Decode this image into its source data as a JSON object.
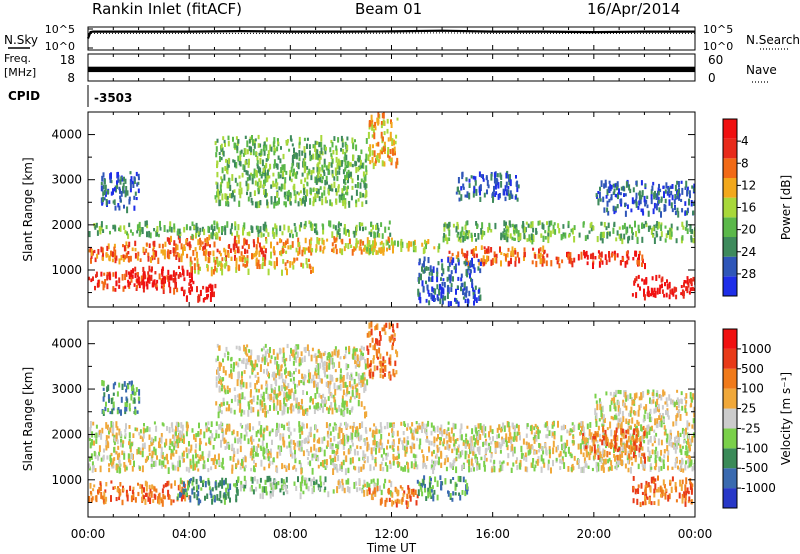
{
  "header": {
    "station": "Rankin Inlet (fitACF)",
    "beam": "Beam 01",
    "date": "16/Apr/2014"
  },
  "colors": {
    "power_scale": [
      "#1e2ee8",
      "#2f56b8",
      "#3e8a5c",
      "#5bb84a",
      "#a8d83a",
      "#f2a81c",
      "#f26a16",
      "#e82a1a",
      "#f01010"
    ],
    "velocity_scale": [
      "#2838c8",
      "#3a6ab0",
      "#3a8a58",
      "#7ad04a",
      "#cccccc",
      "#f0a83a",
      "#f07a1a",
      "#e83a18",
      "#f01010"
    ],
    "velocity_ground": "#c8c8c8",
    "trace": "#000000"
  },
  "chart_data": [
    {
      "type": "line",
      "panel": "noise",
      "left_label": "N.Sky",
      "left_ticks": [
        "10^5",
        "10^0"
      ],
      "right_ticks": [
        "10^5",
        "10^0"
      ],
      "right_label": "N.Search",
      "right_legend_line": "dotted",
      "series": [
        {
          "style": "solid",
          "x": [
            0,
            0.1,
            0.2,
            2,
            4,
            6,
            8,
            10,
            12,
            14,
            16,
            18,
            20,
            22,
            24
          ],
          "y": [
            0.5,
            0.78,
            0.8,
            0.8,
            0.8,
            0.82,
            0.8,
            0.8,
            0.81,
            0.84,
            0.8,
            0.8,
            0.78,
            0.8,
            0.8
          ]
        },
        {
          "style": "dotted",
          "x": [
            0,
            4,
            8,
            12,
            14,
            16,
            20,
            24
          ],
          "y": [
            0.72,
            0.72,
            0.72,
            0.73,
            0.75,
            0.72,
            0.72,
            0.72
          ]
        }
      ]
    },
    {
      "type": "line",
      "panel": "frequency",
      "left_label": "Freq.",
      "left_unit": "[MHz]",
      "left_ticks": [
        "18",
        "8"
      ],
      "right_ticks": [
        "60",
        "0"
      ],
      "right_label": "Nave",
      "right_legend_line": "dotted",
      "band": {
        "x": [
          0,
          24
        ],
        "y_low": 0.33,
        "y_high": 0.53
      }
    },
    {
      "type": "table",
      "panel": "cpid",
      "label": "CPID",
      "value": "-3503"
    },
    {
      "type": "heatmap",
      "panel": "power",
      "ylabel": "Slant Range [km]",
      "xlim": [
        0,
        24
      ],
      "ylim": [
        180,
        4500
      ],
      "yticks": [
        1000,
        2000,
        3000,
        4000
      ],
      "colorbar": {
        "label": "Power [dB]",
        "ticks": [
          "4",
          "8",
          "12",
          "16",
          "20",
          "24",
          "28"
        ]
      },
      "regions": [
        {
          "x": [
            0,
            3.5
          ],
          "y": [
            600,
            1000
          ],
          "level": 7
        },
        {
          "x": [
            1.5,
            4.2
          ],
          "y": [
            700,
            1100
          ],
          "level": 8
        },
        {
          "x": [
            3.5,
            5
          ],
          "y": [
            380,
            700
          ],
          "level": 8
        },
        {
          "x": [
            0,
            3
          ],
          "y": [
            1250,
            1650
          ],
          "level": 6
        },
        {
          "x": [
            3,
            7
          ],
          "y": [
            1300,
            1800
          ],
          "level": 6
        },
        {
          "x": [
            4,
            9
          ],
          "y": [
            1000,
            1300
          ],
          "level": 5
        },
        {
          "x": [
            7,
            12
          ],
          "y": [
            1400,
            1750
          ],
          "level": 5
        },
        {
          "x": [
            0,
            12
          ],
          "y": [
            1800,
            2100
          ],
          "level": 3
        },
        {
          "x": [
            11,
            14
          ],
          "y": [
            1450,
            1700
          ],
          "level": 4
        },
        {
          "x": [
            14,
            18
          ],
          "y": [
            1200,
            1550
          ],
          "level": 6
        },
        {
          "x": [
            18,
            22
          ],
          "y": [
            1150,
            1450
          ],
          "level": 7
        },
        {
          "x": [
            21.5,
            24
          ],
          "y": [
            450,
            900
          ],
          "level": 8
        },
        {
          "x": [
            14,
            24
          ],
          "y": [
            1700,
            2100
          ],
          "level": 3
        },
        {
          "x": [
            13,
            15.5
          ],
          "y": [
            300,
            1300
          ],
          "level": 1
        },
        {
          "x": [
            20,
            24
          ],
          "y": [
            2300,
            3000
          ],
          "level": 1
        },
        {
          "x": [
            0.5,
            2
          ],
          "y": [
            2400,
            3200
          ],
          "level": 1
        },
        {
          "x": [
            5,
            11
          ],
          "y": [
            2500,
            4000
          ],
          "level": 3
        },
        {
          "x": [
            11,
            12.2
          ],
          "y": [
            3300,
            4500
          ],
          "level": 5
        },
        {
          "x": [
            14.5,
            17
          ],
          "y": [
            2600,
            3200
          ],
          "level": 1
        }
      ]
    },
    {
      "type": "heatmap",
      "panel": "velocity",
      "ylabel": "Slant Range [km]",
      "xlabel": "Time UT",
      "xlim": [
        0,
        24
      ],
      "ylim": [
        180,
        4500
      ],
      "yticks": [
        1000,
        2000,
        3000,
        4000
      ],
      "xticks": [
        "00:00",
        "04:00",
        "08:00",
        "12:00",
        "16:00",
        "20:00",
        "00:00"
      ],
      "xtick_values": [
        0,
        4,
        8,
        12,
        16,
        20,
        24
      ],
      "colorbar": {
        "label": "Velocity [m s⁻¹]",
        "ticks": [
          "1000",
          "500",
          "100",
          "25",
          "-25",
          "-100",
          "-500",
          "-1000"
        ]
      },
      "regions": [
        {
          "x": [
            0,
            24
          ],
          "y": [
            1250,
            2300
          ],
          "level": 4
        },
        {
          "x": [
            0,
            4
          ],
          "y": [
            550,
            1000
          ],
          "level": 6
        },
        {
          "x": [
            3.5,
            6
          ],
          "y": [
            550,
            1100
          ],
          "level": 2
        },
        {
          "x": [
            6,
            9.5
          ],
          "y": [
            700,
            1100
          ],
          "level": 3
        },
        {
          "x": [
            9.5,
            12
          ],
          "y": [
            750,
            1050
          ],
          "level": 4
        },
        {
          "x": [
            11,
            13
          ],
          "y": [
            500,
            900
          ],
          "level": 6
        },
        {
          "x": [
            13,
            15
          ],
          "y": [
            600,
            1100
          ],
          "level": 2
        },
        {
          "x": [
            19.5,
            22
          ],
          "y": [
            1500,
            2200
          ],
          "level": 6
        },
        {
          "x": [
            21.5,
            24
          ],
          "y": [
            500,
            1100
          ],
          "level": 6
        },
        {
          "x": [
            5,
            11
          ],
          "y": [
            2500,
            4000
          ],
          "level": 4
        },
        {
          "x": [
            11,
            12.2
          ],
          "y": [
            3300,
            4500
          ],
          "level": 6
        },
        {
          "x": [
            0.5,
            2
          ],
          "y": [
            2500,
            3200
          ],
          "level": 2
        },
        {
          "x": [
            20,
            24
          ],
          "y": [
            2300,
            3000
          ],
          "level": 4
        }
      ]
    }
  ]
}
